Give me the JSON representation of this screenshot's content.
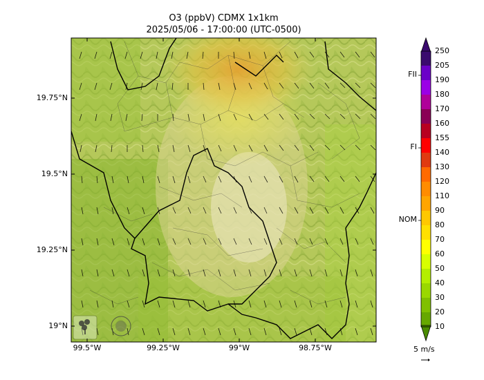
{
  "title": "O3 (ppbV) CDMX 1x1km",
  "subtitle": "2025/05/06 - 17:00:00 (UTC-0500)",
  "y_ticks": [
    "19.75°N",
    "19.5°N",
    "19.25°N",
    "19°N"
  ],
  "x_ticks": [
    "99.5°W",
    "99.25°W",
    "99°W",
    "98.75°W"
  ],
  "colorbar": {
    "values": [
      "250",
      "205",
      "190",
      "180",
      "170",
      "160",
      "155",
      "140",
      "130",
      "120",
      "110",
      "90",
      "80",
      "70",
      "60",
      "50",
      "40",
      "30",
      "20",
      "10"
    ],
    "colors": [
      "#3a0a6e",
      "#6b00c8",
      "#9b00e6",
      "#b0009a",
      "#8a0055",
      "#b80020",
      "#ff0000",
      "#e03a10",
      "#ff6a00",
      "#ff8c00",
      "#ffa500",
      "#ffc800",
      "#ffe000",
      "#ffff00",
      "#d8ff00",
      "#b4ee00",
      "#9ad800",
      "#80c000",
      "#66a800",
      "#4a8c00"
    ],
    "levels": [
      {
        "label": "FII",
        "value": 205
      },
      {
        "label": "FI",
        "value": 155
      },
      {
        "label": "NOM",
        "value": 90
      }
    ]
  },
  "wind_scale": {
    "label": "5 m/s",
    "arrow": "→"
  },
  "logos": [
    "SEDEMA",
    "Ciudad de México"
  ]
}
